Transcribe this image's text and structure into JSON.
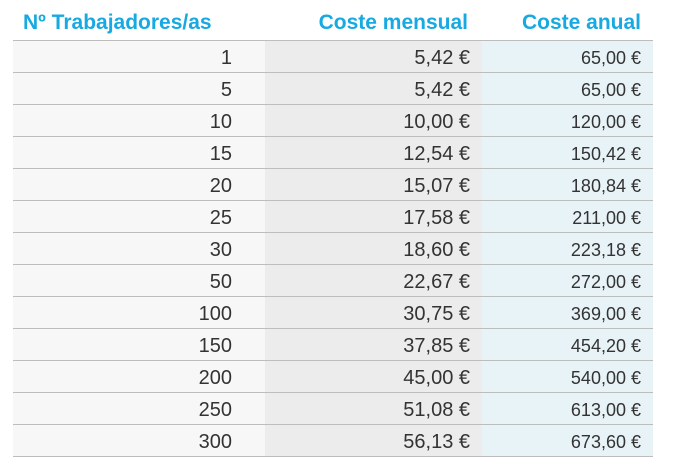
{
  "table": {
    "headers": {
      "workers": "Nº Trabajadores/as",
      "monthly": "Coste mensual",
      "annual": "Coste anual"
    },
    "rows": [
      {
        "workers": "1",
        "monthly": "5,42 €",
        "annual": "65,00 €"
      },
      {
        "workers": "5",
        "monthly": "5,42 €",
        "annual": "65,00 €"
      },
      {
        "workers": "10",
        "monthly": "10,00 €",
        "annual": "120,00 €"
      },
      {
        "workers": "15",
        "monthly": "12,54 €",
        "annual": "150,42 €"
      },
      {
        "workers": "20",
        "monthly": "15,07 €",
        "annual": "180,84 €"
      },
      {
        "workers": "25",
        "monthly": "17,58 €",
        "annual": "211,00 €"
      },
      {
        "workers": "30",
        "monthly": "18,60 €",
        "annual": "223,18 €"
      },
      {
        "workers": "50",
        "monthly": "22,67 €",
        "annual": "272,00 €"
      },
      {
        "workers": "100",
        "monthly": "30,75 €",
        "annual": "369,00 €"
      },
      {
        "workers": "150",
        "monthly": "37,85 €",
        "annual": "454,20 €"
      },
      {
        "workers": "200",
        "monthly": "45,00 €",
        "annual": "540,00 €"
      },
      {
        "workers": "250",
        "monthly": "51,08 €",
        "annual": "613,00 €"
      },
      {
        "workers": "300",
        "monthly": "56,13 €",
        "annual": "673,60 €"
      }
    ]
  },
  "colors": {
    "header_text": "#17a9e1",
    "workers_bg": "#f7f7f7",
    "monthly_bg": "#ececec",
    "annual_bg": "#e8f3f8"
  }
}
